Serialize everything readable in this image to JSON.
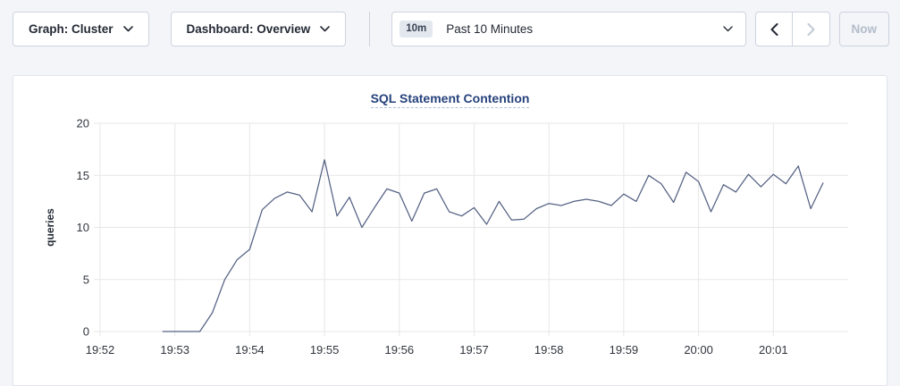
{
  "toolbar": {
    "graph_dropdown": {
      "label": "Graph: Cluster"
    },
    "dashboard_dropdown": {
      "label": "Dashboard: Overview"
    },
    "time_range": {
      "badge": "10m",
      "label": "Past 10 Minutes"
    },
    "now_label": "Now"
  },
  "colors": {
    "page_bg": "#f3f5f9",
    "card_bg": "#ffffff",
    "title_blue": "#26427c",
    "text_dark": "#242a35",
    "disabled_text": "#b4bcc9",
    "gridline": "#e7e7e7",
    "series_line": "#546183",
    "tick_label": "#30353c"
  },
  "chart_data": {
    "type": "line",
    "title": "SQL Statement Contention",
    "ylabel": "queries",
    "ylim": [
      0,
      20
    ],
    "yticks": [
      0,
      5,
      10,
      15,
      20
    ],
    "grid": true,
    "legend": "none",
    "x_domain_seconds": [
      0,
      600
    ],
    "x_ticks": [
      {
        "t": 0,
        "label": "19:52"
      },
      {
        "t": 60,
        "label": "19:53"
      },
      {
        "t": 120,
        "label": "19:54"
      },
      {
        "t": 180,
        "label": "19:55"
      },
      {
        "t": 240,
        "label": "19:56"
      },
      {
        "t": 300,
        "label": "19:57"
      },
      {
        "t": 360,
        "label": "19:58"
      },
      {
        "t": 420,
        "label": "19:59"
      },
      {
        "t": 480,
        "label": "20:00"
      },
      {
        "t": 540,
        "label": "20:01"
      }
    ],
    "series": [
      {
        "name": "queries",
        "points": [
          [
            50,
            0
          ],
          [
            60,
            0
          ],
          [
            70,
            0
          ],
          [
            80,
            0
          ],
          [
            90,
            1.8
          ],
          [
            100,
            5
          ],
          [
            110,
            6.9
          ],
          [
            120,
            7.9
          ],
          [
            130,
            11.7
          ],
          [
            140,
            12.8
          ],
          [
            150,
            13.4
          ],
          [
            160,
            13.1
          ],
          [
            170,
            11.5
          ],
          [
            180,
            16.5
          ],
          [
            190,
            11.1
          ],
          [
            200,
            12.9
          ],
          [
            210,
            10
          ],
          [
            220,
            11.9
          ],
          [
            230,
            13.7
          ],
          [
            240,
            13.3
          ],
          [
            250,
            10.6
          ],
          [
            260,
            13.3
          ],
          [
            270,
            13.7
          ],
          [
            280,
            11.5
          ],
          [
            290,
            11.1
          ],
          [
            300,
            11.9
          ],
          [
            310,
            10.3
          ],
          [
            320,
            12.5
          ],
          [
            330,
            10.7
          ],
          [
            340,
            10.8
          ],
          [
            350,
            11.8
          ],
          [
            360,
            12.3
          ],
          [
            370,
            12.1
          ],
          [
            380,
            12.5
          ],
          [
            390,
            12.7
          ],
          [
            400,
            12.5
          ],
          [
            410,
            12.1
          ],
          [
            420,
            13.2
          ],
          [
            430,
            12.5
          ],
          [
            440,
            15
          ],
          [
            450,
            14.2
          ],
          [
            460,
            12.4
          ],
          [
            470,
            15.3
          ],
          [
            480,
            14.4
          ],
          [
            490,
            11.5
          ],
          [
            500,
            14.1
          ],
          [
            510,
            13.4
          ],
          [
            520,
            15.1
          ],
          [
            530,
            13.9
          ],
          [
            540,
            15.1
          ],
          [
            550,
            14.2
          ],
          [
            560,
            15.9
          ],
          [
            570,
            11.8
          ],
          [
            580,
            14.3
          ]
        ]
      }
    ]
  }
}
